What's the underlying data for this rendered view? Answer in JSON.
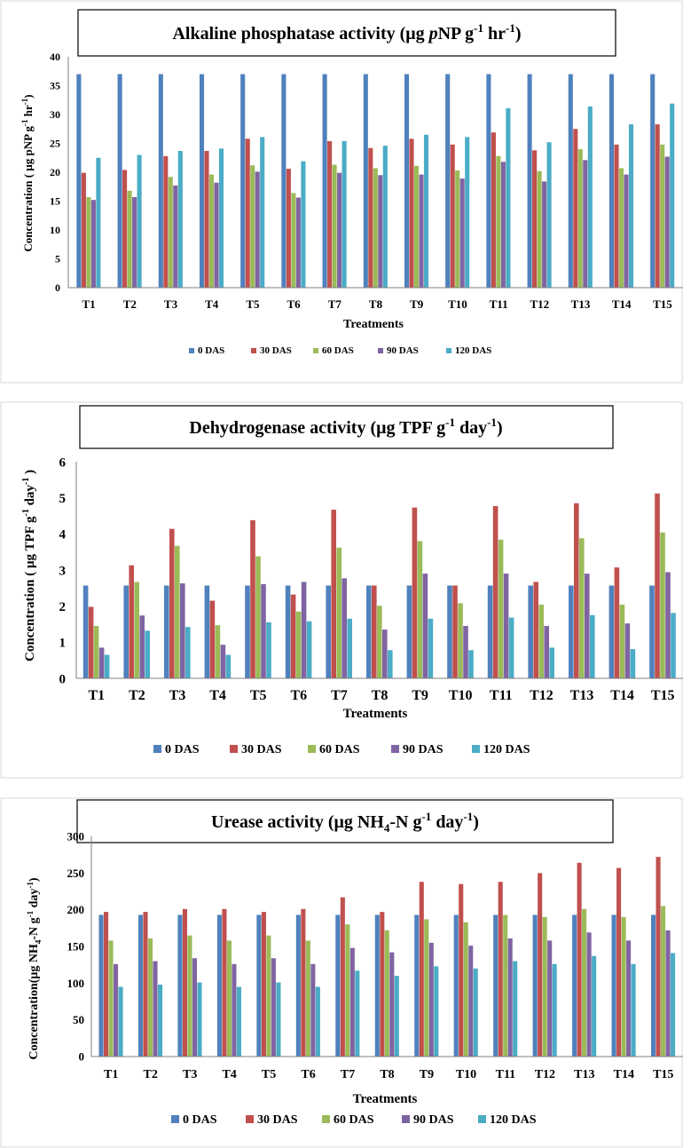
{
  "chart_data": [
    {
      "type": "bar",
      "title": {
        "main": "Alkaline phosphatase activity (μg ",
        "italic": "p",
        "mid": "NP g",
        "sup1": "-1",
        "mid2": " hr",
        "sup2": "-1",
        "end": ")"
      },
      "xlabel": "Treatments",
      "ylabel": {
        "part1": "Concentration ( μg pNP g",
        "sup1": "-1",
        "part2": " hr",
        "sup2": "-1",
        "part3": ")"
      },
      "ylim": [
        0,
        40
      ],
      "yticks": [
        "0",
        "5",
        "10",
        "15",
        "20",
        "25",
        "30",
        "35",
        "40"
      ],
      "categories": [
        "T1",
        "T2",
        "T3",
        "T4",
        "T5",
        "T6",
        "T7",
        "T8",
        "T9",
        "T10",
        "T11",
        "T12",
        "T13",
        "T14",
        "T15"
      ],
      "legend_position": "bottom",
      "grid": false,
      "series": [
        {
          "name": "0 DAS",
          "color": "#4f81bd",
          "values": [
            37,
            37,
            37,
            37,
            37,
            37,
            37,
            37,
            37,
            37,
            37,
            37,
            37,
            37,
            37
          ]
        },
        {
          "name": "30 DAS",
          "color": "#c0504d",
          "values": [
            19.9,
            20.4,
            22.8,
            23.7,
            25.8,
            20.6,
            25.4,
            24.2,
            25.8,
            24.8,
            26.9,
            23.8,
            27.5,
            24.8,
            28.3
          ]
        },
        {
          "name": "60 DAS",
          "color": "#9bbb59",
          "values": [
            15.7,
            16.8,
            19.2,
            19.6,
            21.2,
            16.4,
            21.3,
            20.7,
            21.1,
            20.3,
            22.8,
            20.2,
            24.0,
            20.7,
            24.8
          ]
        },
        {
          "name": "90 DAS",
          "color": "#8064a2",
          "values": [
            15.2,
            15.7,
            17.7,
            18.2,
            20.1,
            15.6,
            19.9,
            19.5,
            19.6,
            18.9,
            21.8,
            18.4,
            22.1,
            19.6,
            22.7
          ]
        },
        {
          "name": "120 DAS",
          "color": "#4bacc6",
          "values": [
            22.5,
            23.0,
            23.7,
            24.1,
            26.1,
            21.9,
            25.4,
            24.6,
            26.5,
            26.1,
            31.1,
            25.2,
            31.4,
            28.3,
            31.9
          ]
        }
      ]
    },
    {
      "type": "bar",
      "title": {
        "main": "Dehydrogenase activity (μg TPF g",
        "sup1": "-1",
        "mid": " day",
        "sup2": "-1",
        "end": ")"
      },
      "xlabel": "Treatments",
      "ylabel": {
        "part1": "Concentration ( μg TPF g",
        "sup1": "-1",
        "part2": " day",
        "sup2": "-1",
        "part3": " )"
      },
      "ylim": [
        0,
        6
      ],
      "yticks": [
        "0",
        "1",
        "2",
        "3",
        "4",
        "5",
        "6"
      ],
      "categories": [
        "T1",
        "T2",
        "T3",
        "T4",
        "T5",
        "T6",
        "T7",
        "T8",
        "T9",
        "T10",
        "T11",
        "T12",
        "T13",
        "T14",
        "T15"
      ],
      "legend_position": "bottom",
      "grid": false,
      "series": [
        {
          "name": "0 DAS",
          "color": "#4f81bd",
          "values": [
            2.57,
            2.57,
            2.57,
            2.57,
            2.57,
            2.57,
            2.57,
            2.57,
            2.57,
            2.57,
            2.57,
            2.57,
            2.57,
            2.57,
            2.57
          ]
        },
        {
          "name": "30 DAS",
          "color": "#c0504d",
          "values": [
            1.98,
            3.13,
            4.14,
            2.15,
            4.38,
            2.32,
            4.67,
            2.57,
            4.73,
            2.57,
            4.77,
            2.67,
            4.85,
            3.07,
            5.12
          ]
        },
        {
          "name": "60 DAS",
          "color": "#9bbb59",
          "values": [
            1.45,
            2.67,
            3.67,
            1.47,
            3.38,
            1.85,
            3.62,
            2.01,
            3.8,
            2.08,
            3.84,
            2.04,
            3.88,
            2.04,
            4.04
          ]
        },
        {
          "name": "90 DAS",
          "color": "#8064a2",
          "values": [
            0.85,
            1.74,
            2.63,
            0.93,
            2.61,
            2.67,
            2.77,
            1.35,
            2.9,
            1.45,
            2.9,
            1.45,
            2.9,
            1.52,
            2.94
          ]
        },
        {
          "name": "120 DAS",
          "color": "#4bacc6",
          "values": [
            0.65,
            1.32,
            1.42,
            0.65,
            1.55,
            1.58,
            1.65,
            0.78,
            1.65,
            0.78,
            1.68,
            0.85,
            1.75,
            0.81,
            1.81
          ]
        }
      ]
    },
    {
      "type": "bar",
      "title": {
        "main": "Urease activity (μg NH",
        "sub": "4",
        "mid": "-N g",
        "sup1": "-1",
        "mid2": " day",
        "sup2": "-1",
        "end": ")"
      },
      "xlabel": "Treatments",
      "ylabel": {
        "part1": "Concentration(μg NH",
        "sub": "4",
        "part2": "-N g",
        "sup1": "-1",
        "part3": " day",
        "sup2": "-1",
        "part4": ")"
      },
      "ylim": [
        0,
        300
      ],
      "yticks": [
        "0",
        "50",
        "100",
        "150",
        "200",
        "250",
        "300"
      ],
      "categories": [
        "T1",
        "T2",
        "T3",
        "T4",
        "T5",
        "T6",
        "T7",
        "T8",
        "T9",
        "T10",
        "T11",
        "T12",
        "T13",
        "T14",
        "T15"
      ],
      "legend_position": "bottom",
      "grid": false,
      "series": [
        {
          "name": "0 DAS",
          "color": "#4f81bd",
          "values": [
            193,
            193,
            193,
            193,
            193,
            193,
            193,
            193,
            193,
            193,
            193,
            193,
            193,
            193,
            193
          ]
        },
        {
          "name": "30 DAS",
          "color": "#c0504d",
          "values": [
            197,
            197,
            201,
            201,
            197,
            201,
            217,
            197,
            238,
            235,
            238,
            250,
            264,
            257,
            272
          ]
        },
        {
          "name": "60 DAS",
          "color": "#9bbb59",
          "values": [
            158,
            161,
            165,
            158,
            165,
            158,
            180,
            172,
            187,
            183,
            193,
            190,
            201,
            190,
            205
          ]
        },
        {
          "name": "90 DAS",
          "color": "#8064a2",
          "values": [
            126,
            130,
            134,
            126,
            134,
            126,
            148,
            142,
            155,
            151,
            161,
            158,
            169,
            158,
            172
          ]
        },
        {
          "name": "120 DAS",
          "color": "#4bacc6",
          "values": [
            95,
            98,
            101,
            95,
            101,
            95,
            117,
            110,
            123,
            120,
            130,
            126,
            137,
            126,
            141
          ]
        }
      ]
    }
  ]
}
